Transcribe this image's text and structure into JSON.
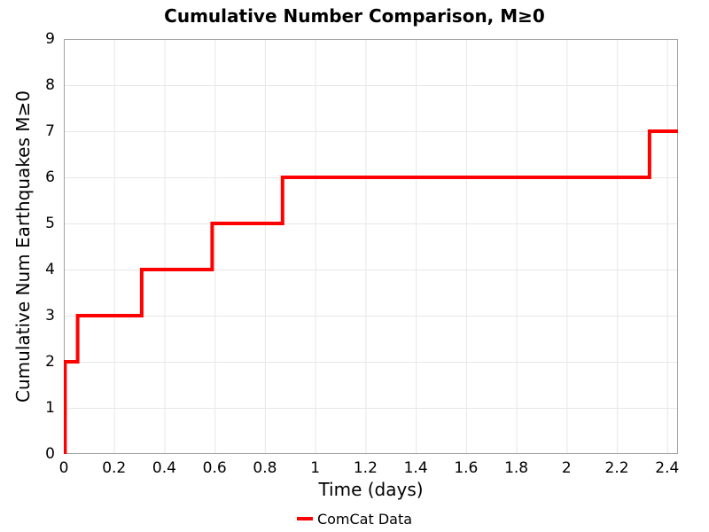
{
  "chart_data": {
    "type": "line",
    "subtype": "step-post",
    "title": "Cumulative Number Comparison, M≥0",
    "xlabel": "Time (days)",
    "ylabel": "Cumulative Num Earthquakes M≥0",
    "xlim": [
      0,
      2.443
    ],
    "ylim": [
      0,
      9
    ],
    "grid": true,
    "xticks": {
      "values": [
        0,
        0.2,
        0.4,
        0.6,
        0.8,
        1,
        1.2,
        1.4,
        1.6,
        1.8,
        2,
        2.2,
        2.4
      ],
      "labels": [
        "0",
        "0.2",
        "0.4",
        "0.6",
        "0.8",
        "1",
        "1.2",
        "1.4",
        "1.6",
        "1.8",
        "2",
        "2.2",
        "2.4"
      ]
    },
    "yticks": {
      "values": [
        0,
        1,
        2,
        3,
        4,
        5,
        6,
        7,
        8,
        9
      ],
      "labels": [
        "0",
        "1",
        "2",
        "3",
        "4",
        "5",
        "6",
        "7",
        "8",
        "9"
      ]
    },
    "series": [
      {
        "name": "ComCat Data",
        "color": "#ff0000",
        "line_width": 4,
        "start": [
          0,
          0
        ],
        "event_steps": [
          [
            0.005,
            2
          ],
          [
            0.055,
            3
          ],
          [
            0.31,
            4
          ],
          [
            0.59,
            5
          ],
          [
            0.87,
            6
          ],
          [
            2.33,
            7
          ]
        ],
        "end_x": 2.443
      }
    ],
    "legend": {
      "position": "bottom-center",
      "entries": [
        {
          "label": "ComCat Data",
          "color": "#ff0000"
        }
      ]
    },
    "colors": {
      "line": "#ff0000",
      "grid": "#e7e7e7",
      "spine": "#a3a3a3",
      "text": "#000000",
      "background": "#ffffff"
    }
  }
}
